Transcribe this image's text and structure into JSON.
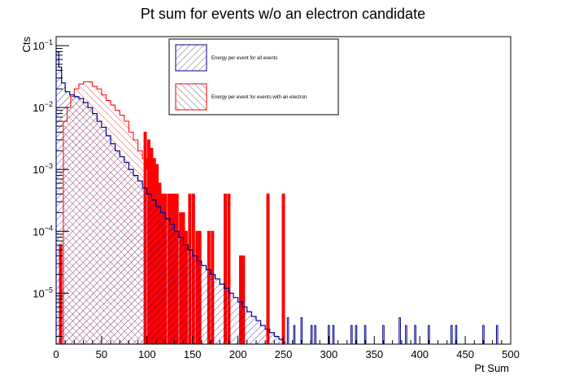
{
  "chart_data": {
    "type": "histogram",
    "title": "Pt sum for events w/o an electron candidate",
    "xlabel": "Pt Sum",
    "ylabel": "Cts",
    "xlim": [
      0,
      500
    ],
    "ylim": [
      1.5e-06,
      0.14
    ],
    "yscale": "log",
    "grid": false,
    "legend_position": "top-center",
    "x_ticks": [
      {
        "value": 0,
        "label": "0"
      },
      {
        "value": 50,
        "label": "50"
      },
      {
        "value": 100,
        "label": "100"
      },
      {
        "value": 150,
        "label": "150"
      },
      {
        "value": 200,
        "label": "200"
      },
      {
        "value": 250,
        "label": "250"
      },
      {
        "value": 300,
        "label": "300"
      },
      {
        "value": 350,
        "label": "350"
      },
      {
        "value": 400,
        "label": "400"
      },
      {
        "value": 450,
        "label": "450"
      },
      {
        "value": 500,
        "label": "500"
      }
    ],
    "y_ticks": [
      {
        "value": 0.1,
        "label": "10",
        "exp": "−1"
      },
      {
        "value": 0.01,
        "label": "10",
        "exp": "−2"
      },
      {
        "value": 0.001,
        "label": "10",
        "exp": "−3"
      },
      {
        "value": 0.0001,
        "label": "10",
        "exp": "−4"
      },
      {
        "value": 1e-05,
        "label": "10",
        "exp": "−5"
      }
    ],
    "series": [
      {
        "name": "Energy per event for all events",
        "color": "#00008b",
        "hatch": "diagonal-forward",
        "points": [
          [
            0,
            0.08
          ],
          [
            3,
            0.045
          ],
          [
            6,
            0.025
          ],
          [
            10,
            0.018
          ],
          [
            15,
            0.016
          ],
          [
            20,
            0.015
          ],
          [
            25,
            0.014
          ],
          [
            30,
            0.012
          ],
          [
            35,
            0.01
          ],
          [
            40,
            0.008
          ],
          [
            45,
            0.006
          ],
          [
            50,
            0.0048
          ],
          [
            55,
            0.0035
          ],
          [
            60,
            0.0026
          ],
          [
            65,
            0.002
          ],
          [
            70,
            0.0016
          ],
          [
            75,
            0.0013
          ],
          [
            80,
            0.001
          ],
          [
            85,
            0.0008
          ],
          [
            90,
            0.00065
          ],
          [
            95,
            0.0005
          ],
          [
            100,
            0.0004
          ],
          [
            105,
            0.00032
          ],
          [
            110,
            0.00025
          ],
          [
            115,
            0.0002
          ],
          [
            120,
            0.00016
          ],
          [
            125,
            0.00013
          ],
          [
            130,
            0.0001
          ],
          [
            135,
            8e-05
          ],
          [
            140,
            6e-05
          ],
          [
            145,
            5e-05
          ],
          [
            150,
            4e-05
          ],
          [
            155,
            3.3e-05
          ],
          [
            160,
            2.8e-05
          ],
          [
            165,
            2.4e-05
          ],
          [
            170,
            2e-05
          ],
          [
            175,
            1.7e-05
          ],
          [
            180,
            1.4e-05
          ],
          [
            185,
            1.2e-05
          ],
          [
            190,
            1e-05
          ],
          [
            195,
            8.5e-06
          ],
          [
            200,
            7.2e-06
          ],
          [
            205,
            6e-06
          ],
          [
            210,
            5e-06
          ],
          [
            215,
            4.2e-06
          ],
          [
            220,
            3.6e-06
          ],
          [
            225,
            3e-06
          ],
          [
            230,
            2.6e-06
          ],
          [
            235,
            2.3e-06
          ],
          [
            240,
            2e-06
          ],
          [
            245,
            1.8e-06
          ],
          [
            250,
            1.6e-06
          ]
        ],
        "spikes": [
          [
            255,
            4e-06
          ],
          [
            262,
            3e-06
          ],
          [
            270,
            4e-06
          ],
          [
            281,
            3e-06
          ],
          [
            285,
            3e-06
          ],
          [
            300,
            3e-06
          ],
          [
            305,
            3e-06
          ],
          [
            325,
            3e-06
          ],
          [
            330,
            3e-06
          ],
          [
            340,
            3e-06
          ],
          [
            360,
            3e-06
          ],
          [
            378,
            4e-06
          ],
          [
            385,
            3e-06
          ],
          [
            395,
            3e-06
          ],
          [
            410,
            3e-06
          ],
          [
            435,
            3e-06
          ],
          [
            440,
            3e-06
          ],
          [
            470,
            3e-06
          ],
          [
            485,
            3e-06
          ]
        ]
      },
      {
        "name": "Energy per event for events with an electron",
        "color": "#ff0000",
        "hatch": "diagonal-backward",
        "points": [
          [
            0,
            0.0
          ],
          [
            5,
            0.0
          ],
          [
            8,
            0.006
          ],
          [
            12,
            0.01
          ],
          [
            16,
            0.015
          ],
          [
            20,
            0.02
          ],
          [
            25,
            0.024
          ],
          [
            30,
            0.026
          ],
          [
            35,
            0.026
          ],
          [
            40,
            0.022
          ],
          [
            45,
            0.02
          ],
          [
            50,
            0.016
          ],
          [
            55,
            0.013
          ],
          [
            60,
            0.011
          ],
          [
            65,
            0.009
          ],
          [
            70,
            0.0075
          ],
          [
            75,
            0.006
          ],
          [
            80,
            0.004
          ],
          [
            85,
            0.003
          ],
          [
            90,
            0.002
          ],
          [
            95,
            0.0015
          ],
          [
            100,
            0.001
          ],
          [
            105,
            0.0006
          ],
          [
            110,
            0.0004
          ]
        ],
        "spikes": [
          [
            5,
            6e-05
          ],
          [
            98,
            0.004
          ],
          [
            102,
            0.003
          ],
          [
            105,
            0.0022
          ],
          [
            108,
            0.0015
          ],
          [
            111,
            0.0012
          ],
          [
            114,
            0.0006
          ],
          [
            117,
            0.0004
          ],
          [
            120,
            0.0004
          ],
          [
            124,
            0.0004
          ],
          [
            127,
            0.0004
          ],
          [
            130,
            0.0004
          ],
          [
            133,
            0.0004
          ],
          [
            137,
            0.0002
          ],
          [
            140,
            0.0002
          ],
          [
            143,
            0.0001
          ],
          [
            147,
            0.0004
          ],
          [
            151,
            0.0004
          ],
          [
            155,
            0.0001
          ],
          [
            158,
            0.0001
          ],
          [
            168,
            0.0001
          ],
          [
            172,
            0.0001
          ],
          [
            186,
            0.0004
          ],
          [
            190,
            0.0004
          ],
          [
            203,
            4e-05
          ],
          [
            206,
            4e-05
          ],
          [
            233,
            0.0004
          ],
          [
            250,
            0.0004
          ]
        ]
      }
    ]
  }
}
